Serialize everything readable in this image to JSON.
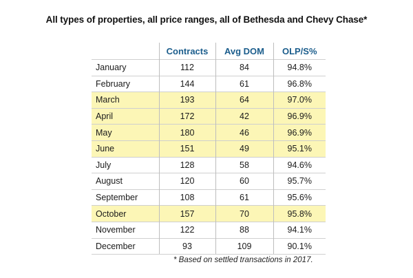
{
  "chart_data": {
    "type": "table",
    "title": "All types of properties, all price ranges, all of Bethesda and Chevy Chase*",
    "columns": [
      "",
      "Contracts",
      "Avg DOM",
      "OLP/S%"
    ],
    "rows": [
      {
        "month": "January",
        "contracts": "112",
        "avg_dom": "84",
        "olp_s": "94.8%",
        "highlight": false
      },
      {
        "month": "February",
        "contracts": "144",
        "avg_dom": "61",
        "olp_s": "96.8%",
        "highlight": false
      },
      {
        "month": "March",
        "contracts": "193",
        "avg_dom": "64",
        "olp_s": "97.0%",
        "highlight": true
      },
      {
        "month": "April",
        "contracts": "172",
        "avg_dom": "42",
        "olp_s": "96.9%",
        "highlight": true
      },
      {
        "month": "May",
        "contracts": "180",
        "avg_dom": "46",
        "olp_s": "96.9%",
        "highlight": true
      },
      {
        "month": "June",
        "contracts": "151",
        "avg_dom": "49",
        "olp_s": "95.1%",
        "highlight": true
      },
      {
        "month": "July",
        "contracts": "128",
        "avg_dom": "58",
        "olp_s": "94.6%",
        "highlight": false
      },
      {
        "month": "August",
        "contracts": "120",
        "avg_dom": "60",
        "olp_s": "95.7%",
        "highlight": false
      },
      {
        "month": "September",
        "contracts": "108",
        "avg_dom": "61",
        "olp_s": "95.6%",
        "highlight": false
      },
      {
        "month": "October",
        "contracts": "157",
        "avg_dom": "70",
        "olp_s": "95.8%",
        "highlight": true
      },
      {
        "month": "November",
        "contracts": "122",
        "avg_dom": "88",
        "olp_s": "94.1%",
        "highlight": false
      },
      {
        "month": "December",
        "contracts": "93",
        "avg_dom": "109",
        "olp_s": "90.1%",
        "highlight": false
      }
    ],
    "footnote": "* Based on settled transactions in 2017."
  },
  "colors": {
    "header_text": "#1b5d8c",
    "highlight_row": "#fcf6b6",
    "rule": "#cfcfcf"
  }
}
